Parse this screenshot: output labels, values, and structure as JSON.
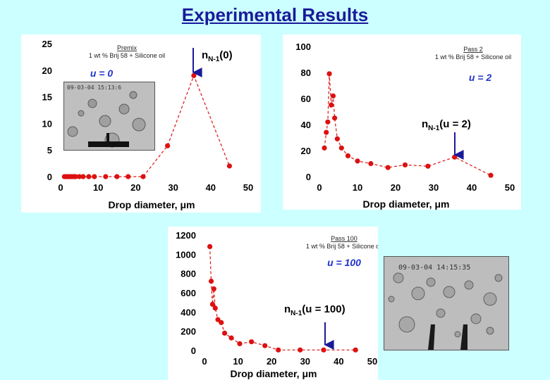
{
  "page": {
    "title": "Experimental Results"
  },
  "annotations": [
    {
      "id": "ann0",
      "prefix": "n",
      "sub": "N-1",
      "rest": "(0)"
    },
    {
      "id": "ann1",
      "prefix": "n",
      "sub": "N-1",
      "rest": "(u = 2)"
    },
    {
      "id": "ann2",
      "prefix": "n",
      "sub": "N-1",
      "rest": "(u = 100)"
    }
  ],
  "photos": [
    {
      "timestamp": "09-03-04 15:13:6"
    },
    {
      "timestamp": "09-03-04 14:15:35"
    }
  ],
  "chart_data": [
    {
      "type": "line",
      "xlabel": "Drop diameter, μm",
      "ylabel": "",
      "xlim": [
        0,
        50
      ],
      "ylim": [
        0,
        25
      ],
      "xticks": [
        0,
        10,
        20,
        30,
        40,
        50
      ],
      "yticks": [
        0,
        5,
        10,
        15,
        20,
        25
      ],
      "legend_lines": [
        "Premix",
        "1 wt % Brij 58 + Silicone oil"
      ],
      "tag": "u = 0",
      "color": "#dd1111",
      "series": [
        {
          "x": [
            1,
            1.5,
            2,
            2.5,
            3,
            3.5,
            4,
            5,
            6,
            7.5,
            9,
            12,
            15,
            18,
            22,
            28.5,
            35.5,
            45
          ],
          "y": [
            0,
            0,
            0,
            0,
            0,
            0,
            0,
            0,
            0,
            0,
            0,
            0,
            0,
            0,
            0,
            5.8,
            19,
            2
          ]
        }
      ]
    },
    {
      "type": "line",
      "xlabel": "Drop diameter, μm",
      "ylabel": "",
      "xlim": [
        0,
        50
      ],
      "ylim": [
        0,
        100
      ],
      "xticks": [
        0,
        10,
        20,
        30,
        40,
        50
      ],
      "yticks": [
        0,
        20,
        40,
        60,
        80,
        100
      ],
      "legend_lines": [
        "Pass 2",
        "1 wt % Brij 58 + Silicone oil"
      ],
      "tag": "u = 2",
      "color": "#dd1111",
      "series": [
        {
          "x": [
            1.3,
            1.8,
            2.2,
            2.6,
            3.1,
            3.6,
            4,
            4.7,
            5.8,
            7.5,
            10,
            13.5,
            18,
            22.5,
            28.5,
            35.5,
            45
          ],
          "y": [
            22,
            34,
            42,
            79,
            55,
            62,
            45,
            29,
            22,
            16,
            12,
            10,
            7,
            9,
            8,
            15,
            1
          ]
        }
      ]
    },
    {
      "type": "line",
      "xlabel": "Drop diameter, μm",
      "ylabel": "",
      "xlim": [
        0,
        50
      ],
      "ylim": [
        0,
        1200
      ],
      "xticks": [
        0,
        10,
        20,
        30,
        40,
        50
      ],
      "yticks": [
        0,
        200,
        400,
        600,
        800,
        1000,
        1200
      ],
      "legend_lines": [
        "Pass 100",
        "1 wt % Brij 58 + Silicone oil"
      ],
      "tag": "u = 100",
      "color": "#dd1111",
      "series": [
        {
          "x": [
            1.6,
            2,
            2.4,
            2.8,
            3.2,
            4,
            5,
            6,
            8,
            10.5,
            14,
            18,
            22,
            28.5,
            35.5,
            45
          ],
          "y": [
            1080,
            720,
            480,
            640,
            440,
            320,
            290,
            180,
            130,
            70,
            90,
            50,
            5,
            5,
            5,
            5
          ]
        }
      ]
    }
  ]
}
